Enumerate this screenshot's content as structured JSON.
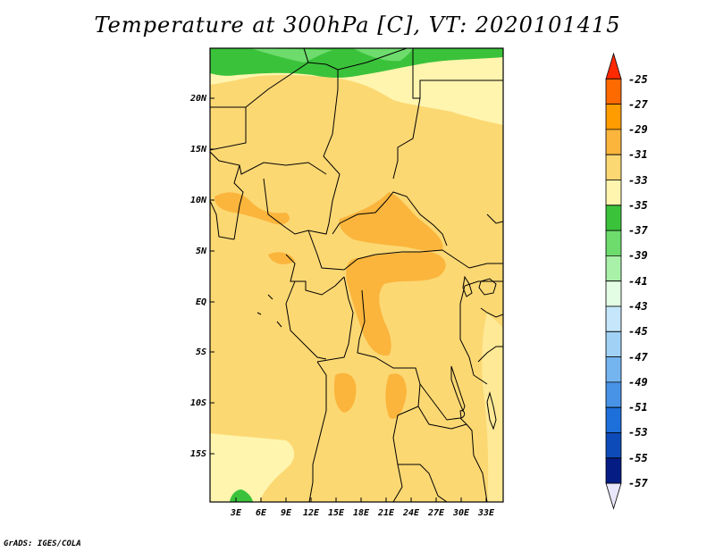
{
  "title": "Temperature at 300hPa [C], VT: 2020101415",
  "credit": "GrADS: IGES/COLA",
  "map": {
    "lat_ticks": [
      "20N",
      "15N",
      "10N",
      "5N",
      "EQ",
      "5S",
      "10S",
      "15S"
    ],
    "lon_ticks": [
      "3E",
      "6E",
      "9E",
      "12E",
      "15E",
      "18E",
      "21E",
      "24E",
      "27E",
      "30E",
      "33E"
    ]
  },
  "colorbar": {
    "labels": [
      "-25",
      "-27",
      "-29",
      "-31",
      "-33",
      "-35",
      "-37",
      "-39",
      "-41",
      "-43",
      "-45",
      "-47",
      "-49",
      "-51",
      "-53",
      "-55",
      "-57"
    ],
    "colors": [
      "#ff2a00",
      "#ff6a00",
      "#ff9c00",
      "#fbb53c",
      "#fcd873",
      "#fff5ae",
      "#3bc23b",
      "#6ddc6d",
      "#a9f0a9",
      "#e2fde4",
      "#c5e6fb",
      "#a1d2f6",
      "#74b5f0",
      "#4893e6",
      "#1d6fda",
      "#0d4bb8",
      "#061c85",
      "#e8e6fa"
    ]
  }
}
